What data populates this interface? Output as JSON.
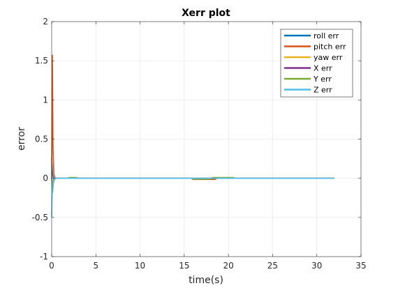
{
  "chart_data": {
    "type": "line",
    "title": "Xerr plot",
    "xlabel": "time(s)",
    "ylabel": "error",
    "xlim": [
      0,
      35
    ],
    "ylim": [
      -1,
      2
    ],
    "xticks": [
      0,
      5,
      10,
      15,
      20,
      25,
      30,
      35
    ],
    "xtick_labels": [
      "0",
      "5",
      "10",
      "15",
      "20",
      "25",
      "30",
      "35"
    ],
    "yticks": [
      -1,
      -0.5,
      0,
      0.5,
      1,
      1.5,
      2
    ],
    "ytick_labels": [
      "-1",
      "-0.5",
      "0",
      "0.5",
      "1",
      "1.5",
      "2"
    ],
    "grid": true,
    "legend_position": "top-right",
    "series": [
      {
        "name": "roll err",
        "color": "#0072BD",
        "x": [
          0,
          0.1,
          0.25,
          0.4,
          0.8,
          2.0,
          18.0,
          32.0
        ],
        "y": [
          0.26,
          0.05,
          -0.02,
          0.0,
          0.0,
          0.0,
          0.0,
          0.0
        ]
      },
      {
        "name": "pitch err",
        "color": "#D95319",
        "x": [
          0,
          0.08,
          0.15,
          0.25,
          0.4,
          1.0,
          15.8,
          16.0,
          18.5,
          18.7,
          32.0
        ],
        "y": [
          0.0,
          1.57,
          0.4,
          0.05,
          0.0,
          0.0,
          0.0,
          -0.015,
          -0.015,
          0.0,
          0.0
        ]
      },
      {
        "name": "yaw err",
        "color": "#EDB120",
        "x": [
          0,
          0.1,
          0.25,
          0.5,
          1.0,
          32.0
        ],
        "y": [
          0.0,
          -0.05,
          -0.02,
          0.0,
          0.0,
          0.0
        ]
      },
      {
        "name": "X err",
        "color": "#7E2F8E",
        "x": [
          0,
          0.1,
          0.3,
          0.6,
          32.0
        ],
        "y": [
          0.0,
          -0.1,
          0.0,
          0.0,
          0.0
        ]
      },
      {
        "name": "Y err",
        "color": "#77AC30",
        "x": [
          0,
          0.1,
          0.2,
          0.4,
          1.8,
          2.0,
          2.8,
          3.0,
          15.8,
          16.0,
          18.0,
          18.2,
          20.5,
          20.7,
          32.0
        ],
        "y": [
          0.0,
          -0.18,
          -0.05,
          0.0,
          0.0,
          0.01,
          0.01,
          0.0,
          0.0,
          -0.01,
          -0.01,
          0.01,
          0.01,
          0.0,
          0.0
        ]
      },
      {
        "name": "Z err",
        "color": "#4DBEEE",
        "x": [
          0,
          0.05,
          0.15,
          0.3,
          0.6,
          1.0,
          32.0
        ],
        "y": [
          -0.5,
          -0.2,
          -0.05,
          -0.01,
          0.0,
          0.0,
          0.0
        ]
      }
    ]
  }
}
